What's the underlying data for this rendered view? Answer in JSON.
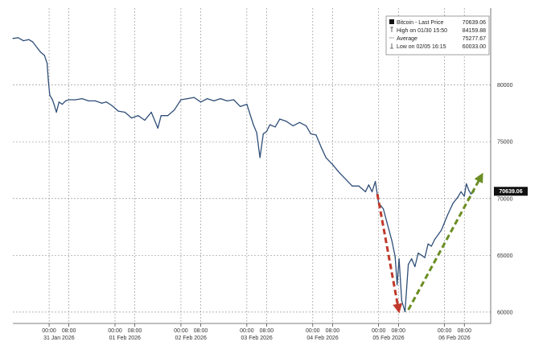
{
  "chart_data": {
    "type": "line",
    "title": "",
    "xlabel": "",
    "ylabel": "",
    "ylim": [
      59000,
      85500
    ],
    "y_ticks": [
      60000,
      65000,
      70000,
      75000,
      80000
    ],
    "y_tick_labels": [
      "60000",
      "65000",
      "70000",
      "75000",
      "80000"
    ],
    "x_ticks": [
      {
        "day": -1.25,
        "label": "00:00"
      },
      {
        "day": -0.95,
        "label": "08:00"
      },
      {
        "day": -0.25,
        "label": "00:00"
      },
      {
        "day": 0.05,
        "label": "08:00"
      },
      {
        "day": 0.75,
        "label": "00:00"
      },
      {
        "day": 1.05,
        "label": "08:00"
      },
      {
        "day": 1.75,
        "label": "00:00"
      },
      {
        "day": 2.05,
        "label": "08:00"
      },
      {
        "day": 2.75,
        "label": "00:00"
      },
      {
        "day": 3.05,
        "label": "08:00"
      },
      {
        "day": 3.75,
        "label": "00:00"
      },
      {
        "day": 4.05,
        "label": "08:00"
      },
      {
        "day": 4.75,
        "label": "00:00"
      },
      {
        "day": 5.05,
        "label": "08:00"
      }
    ],
    "date_labels": [
      {
        "day": -1.1,
        "label": "31 Jan 2026"
      },
      {
        "day": -0.1,
        "label": "01 Feb 2026"
      },
      {
        "day": 0.9,
        "label": "02 Feb 2026"
      },
      {
        "day": 1.9,
        "label": "03 Feb 2026"
      },
      {
        "day": 2.9,
        "label": "04 Feb 2026"
      },
      {
        "day": 3.9,
        "label": "05 Feb 2026"
      },
      {
        "day": 4.9,
        "label": "06 Feb 2026"
      }
    ],
    "xlim": [
      -1.8,
      5.45
    ],
    "series": [
      {
        "name": "Bitcoin - Last Price",
        "color": "#2f4e78",
        "x": [
          -1.8,
          -1.72,
          -1.64,
          -1.56,
          -1.5,
          -1.42,
          -1.38,
          -1.32,
          -1.28,
          -1.26,
          -1.24,
          -1.2,
          -1.17,
          -1.14,
          -1.1,
          -1.05,
          -1.0,
          -0.95,
          -0.85,
          -0.75,
          -0.65,
          -0.55,
          -0.45,
          -0.38,
          -0.3,
          -0.2,
          -0.1,
          0.0,
          0.1,
          0.2,
          0.3,
          0.4,
          0.45,
          0.55,
          0.65,
          0.75,
          0.85,
          0.95,
          1.05,
          1.15,
          1.25,
          1.35,
          1.45,
          1.55,
          1.65,
          1.75,
          1.85,
          1.9,
          1.95,
          2.0,
          2.05,
          2.1,
          2.18,
          2.25,
          2.35,
          2.45,
          2.55,
          2.65,
          2.72,
          2.8,
          2.88,
          2.95,
          3.05,
          3.15,
          3.25,
          3.35,
          3.45,
          3.55,
          3.6,
          3.65,
          3.7,
          3.75,
          3.82,
          3.88,
          3.95,
          4.0,
          4.03,
          4.06,
          4.1,
          4.15,
          4.2,
          4.25,
          4.3,
          4.35,
          4.4,
          4.45,
          4.5,
          4.55,
          4.6,
          4.7,
          4.8,
          4.88,
          4.95,
          5.0,
          5.05,
          5.08,
          5.12,
          5.15,
          5.2
        ],
        "y": [
          84100,
          84159.88,
          83900,
          84000,
          83800,
          83200,
          82900,
          82600,
          81900,
          80300,
          79100,
          78700,
          78200,
          77600,
          78500,
          78300,
          78600,
          78700,
          78700,
          78800,
          78600,
          78600,
          78400,
          78500,
          78200,
          77700,
          77600,
          77100,
          77300,
          76900,
          77600,
          76200,
          77300,
          77300,
          77800,
          78700,
          78800,
          78900,
          78500,
          78800,
          78600,
          78800,
          78600,
          78700,
          78100,
          78300,
          76500,
          75800,
          73600,
          75700,
          75900,
          76500,
          76300,
          77000,
          76800,
          76400,
          76700,
          76400,
          75700,
          75600,
          74500,
          73600,
          73000,
          72300,
          71700,
          71100,
          71100,
          70600,
          71200,
          70600,
          71500,
          69600,
          69100,
          67800,
          66300,
          64900,
          62400,
          64700,
          61000,
          60033,
          64200,
          64700,
          64000,
          65200,
          65000,
          64800,
          66000,
          65800,
          66400,
          67200,
          68600,
          69600,
          70100,
          70600,
          70200,
          71300,
          70700,
          70400,
          70639.06
        ]
      }
    ],
    "annotations": {
      "last_price_label": "70639.06",
      "last_price_value": 70639.06,
      "red_arrow": {
        "from": [
          3.73,
          70400
        ],
        "to": [
          4.05,
          60300
        ],
        "color": "#c0392b"
      },
      "green_arrow": {
        "from": [
          4.2,
          60200
        ],
        "to": [
          5.3,
          71900
        ],
        "color": "#6b8e23"
      }
    },
    "legend": {
      "placement": "top-right",
      "entries": [
        {
          "label": "Bitcoin - Last Price",
          "value": "70639.06"
        },
        {
          "label": "High on 01/30 15:50",
          "value": "84159.88"
        },
        {
          "label": "Average",
          "value": "75277.67"
        },
        {
          "label": "Low on 02/05 16:15",
          "value": "60033.00"
        }
      ]
    },
    "grid": true
  }
}
